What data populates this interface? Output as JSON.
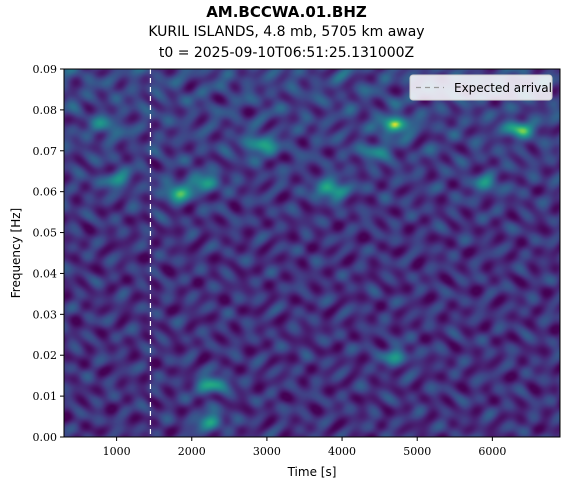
{
  "chart_data": {
    "type": "heatmap",
    "title": "AM.BCCWA.01.BHZ",
    "subtitle": "KURIL ISLANDS, 4.8 mb, 5705 km away",
    "subtitle2": "t0 = 2025-09-10T06:51:25.131000Z",
    "xlabel": "Time [s]",
    "ylabel": "Frequency [Hz]",
    "xlim": [
      300,
      6900
    ],
    "ylim": [
      0.0,
      0.09
    ],
    "xticks": [
      1000,
      2000,
      3000,
      4000,
      5000,
      6000
    ],
    "yticks": [
      0.0,
      0.01,
      0.02,
      0.03,
      0.04,
      0.05,
      0.06,
      0.07,
      0.08,
      0.09
    ],
    "expected_arrival_s": 1450,
    "legend": {
      "label": "Expected arrival",
      "position": "top-right"
    },
    "colormap": "viridis",
    "hotspots": [
      {
        "t": 4700,
        "f": 0.0765,
        "amp": 1.0
      },
      {
        "t": 3850,
        "f": 0.0608,
        "amp": 0.95
      },
      {
        "t": 1800,
        "f": 0.06,
        "amp": 0.85
      },
      {
        "t": 2250,
        "f": 0.013,
        "amp": 0.85
      },
      {
        "t": 2220,
        "f": 0.004,
        "amp": 0.75
      },
      {
        "t": 2900,
        "f": 0.0715,
        "amp": 0.8
      },
      {
        "t": 6350,
        "f": 0.0755,
        "amp": 0.8
      },
      {
        "t": 2150,
        "f": 0.0625,
        "amp": 0.7
      },
      {
        "t": 4700,
        "f": 0.02,
        "amp": 0.6
      },
      {
        "t": 1000,
        "f": 0.063,
        "amp": 0.55
      },
      {
        "t": 5900,
        "f": 0.062,
        "amp": 0.5
      },
      {
        "t": 4450,
        "f": 0.07,
        "amp": 0.5
      },
      {
        "t": 850,
        "f": 0.076,
        "amp": 0.45
      }
    ]
  }
}
